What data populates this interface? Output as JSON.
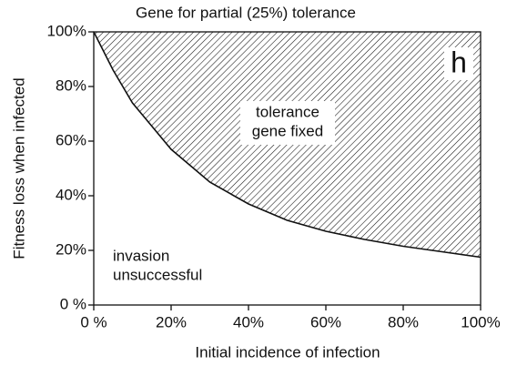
{
  "chart_data": {
    "type": "area",
    "title": "Gene for partial (25%) tolerance",
    "panel_label": "h",
    "x_label": "Initial incidence of infection",
    "y_label": "Fitness loss when infected",
    "annotations": [
      [
        "tolerance",
        "gene fixed"
      ],
      [
        "invasion",
        "unsuccessful"
      ]
    ],
    "x": [
      0,
      5,
      10,
      20,
      30,
      40,
      50,
      60,
      70,
      80,
      90,
      100
    ],
    "values": [
      100,
      86,
      74,
      57,
      45,
      37,
      31,
      27,
      24,
      21.5,
      19.5,
      17.5
    ],
    "color": "#111111",
    "hatch": true,
    "xlim": [
      0,
      100
    ],
    "ylim": [
      0,
      100
    ],
    "xticks": [
      {
        "value": 0,
        "label": "0 %"
      },
      {
        "value": 20,
        "label": "20%"
      },
      {
        "value": 40,
        "label": "40%"
      },
      {
        "value": 60,
        "label": "60%"
      },
      {
        "value": 80,
        "label": "80%"
      },
      {
        "value": 100,
        "label": "100%"
      }
    ],
    "yticks": [
      {
        "value": 0,
        "label": "0 %"
      },
      {
        "value": 20,
        "label": "20%"
      },
      {
        "value": 40,
        "label": "40%"
      },
      {
        "value": 60,
        "label": "60%"
      },
      {
        "value": 80,
        "label": "80%"
      },
      {
        "value": 100,
        "label": "100%"
      }
    ]
  }
}
